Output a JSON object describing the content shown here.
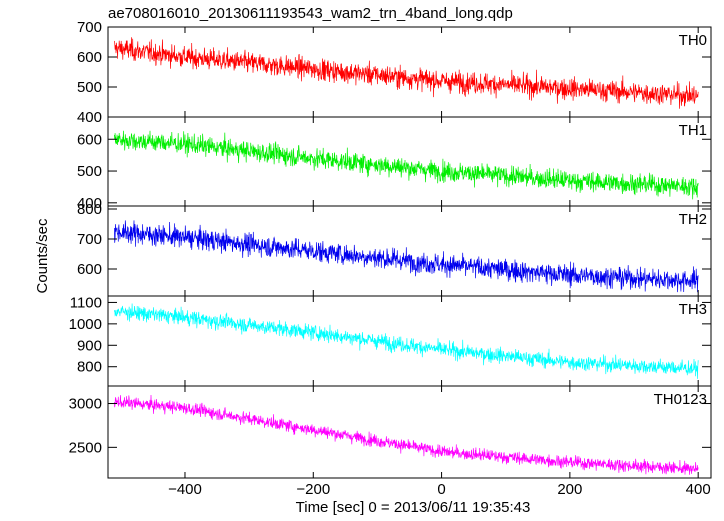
{
  "chart_data": {
    "type": "line",
    "title": "ae708016010_20130611193543_wam2_trn_4band_long.qdp",
    "xlabel": "Time [sec] 0 = 2013/06/11 19:35:43",
    "ylabel": "Counts/sec",
    "xlim": [
      -520,
      420
    ],
    "x_ticks": [
      -400,
      -200,
      0,
      200,
      400
    ],
    "x_range": [
      -510,
      400
    ],
    "panels": [
      {
        "name": "TH0",
        "color": "#ff0000",
        "ylim": [
          400,
          700
        ],
        "yticks": [
          400,
          500,
          600,
          700
        ],
        "trend": {
          "x": [
            -510,
            -400,
            -200,
            0,
            200,
            400
          ],
          "y": [
            630,
            600,
            560,
            520,
            495,
            470
          ]
        },
        "noise": 25
      },
      {
        "name": "TH1",
        "color": "#00ee00",
        "ylim": [
          390,
          670
        ],
        "yticks": [
          400,
          500,
          600
        ],
        "trend": {
          "x": [
            -510,
            -400,
            -200,
            0,
            200,
            400
          ],
          "y": [
            600,
            585,
            540,
            500,
            470,
            450
          ]
        },
        "noise": 22
      },
      {
        "name": "TH2",
        "color": "#0000ee",
        "ylim": [
          510,
          810
        ],
        "yticks": [
          600,
          700,
          800
        ],
        "trend": {
          "x": [
            -510,
            -400,
            -200,
            0,
            200,
            400
          ],
          "y": [
            725,
            705,
            660,
            615,
            580,
            560
          ]
        },
        "noise": 25
      },
      {
        "name": "TH3",
        "color": "#00ffff",
        "ylim": [
          710,
          1130
        ],
        "yticks": [
          800,
          900,
          1000,
          1100
        ],
        "trend": {
          "x": [
            -510,
            -400,
            -200,
            0,
            200,
            400
          ],
          "y": [
            1060,
            1030,
            960,
            880,
            820,
            790
          ]
        },
        "noise": 25
      },
      {
        "name": "TH0123",
        "color": "#ff00ff",
        "ylim": [
          2150,
          3200
        ],
        "yticks": [
          2500,
          3000
        ],
        "trend": {
          "x": [
            -510,
            -400,
            -200,
            0,
            200,
            400
          ],
          "y": [
            3020,
            2950,
            2700,
            2450,
            2330,
            2250
          ]
        },
        "noise": 50
      }
    ]
  }
}
